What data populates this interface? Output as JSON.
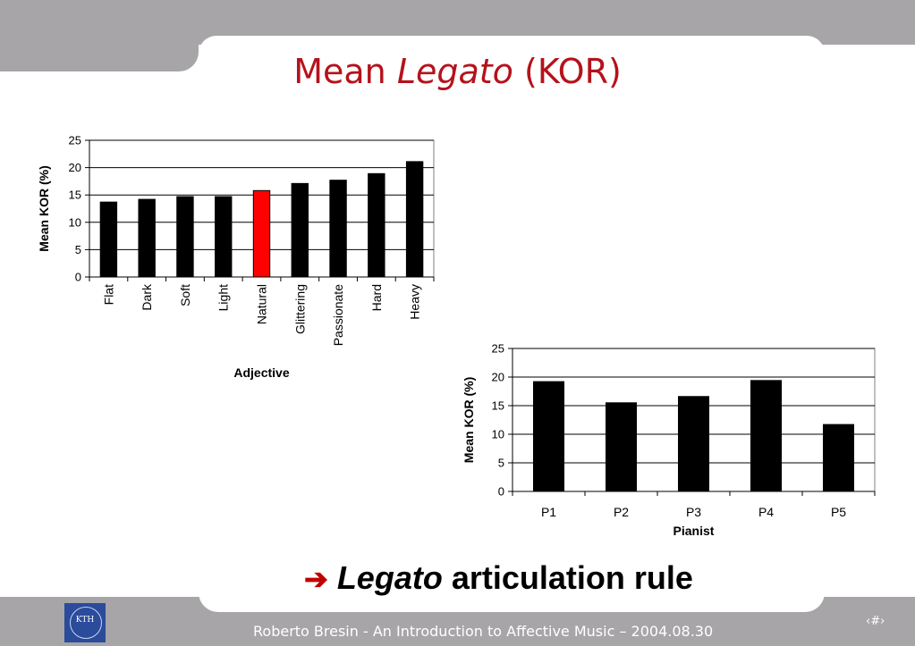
{
  "slide": {
    "title_prefix": "Mean ",
    "title_italic": "Legato",
    "title_suffix": " (KOR)",
    "rule_arrow": "➔",
    "rule_italic": "Legato",
    "rule_rest": " articulation rule",
    "footer": "Roberto Bresin - An Introduction to Affective Music – 2004.08.30",
    "page_number": "‹#›",
    "logo_text": "KTH"
  },
  "colors": {
    "title": "#b5121b",
    "bar": "#000000",
    "highlight_bar": "#ff0000",
    "background_gray": "#a7a5a8"
  },
  "chart_data": [
    {
      "type": "bar",
      "categories": [
        "Flat",
        "Dark",
        "Soft",
        "Light",
        "Natural",
        "Glittering",
        "Passionate",
        "Hard",
        "Heavy"
      ],
      "values": [
        13.7,
        14.2,
        14.7,
        14.7,
        15.8,
        17.1,
        17.7,
        18.9,
        21.1
      ],
      "highlight_index": 4,
      "xlabel": "Adjective",
      "ylabel": "Mean KOR (%)",
      "ylim": [
        0,
        25
      ],
      "yticks": [
        0,
        5,
        10,
        15,
        20,
        25
      ],
      "grid": true,
      "xtick_rotation": "vertical"
    },
    {
      "type": "bar",
      "categories": [
        "P1",
        "P2",
        "P3",
        "P4",
        "P5"
      ],
      "values": [
        19.2,
        15.5,
        16.6,
        19.4,
        11.7
      ],
      "xlabel": "Pianist",
      "ylabel": "Mean KOR (%)",
      "ylim": [
        0,
        25
      ],
      "yticks": [
        0,
        5,
        10,
        15,
        20,
        25
      ],
      "grid": true,
      "xtick_rotation": "horizontal"
    }
  ]
}
